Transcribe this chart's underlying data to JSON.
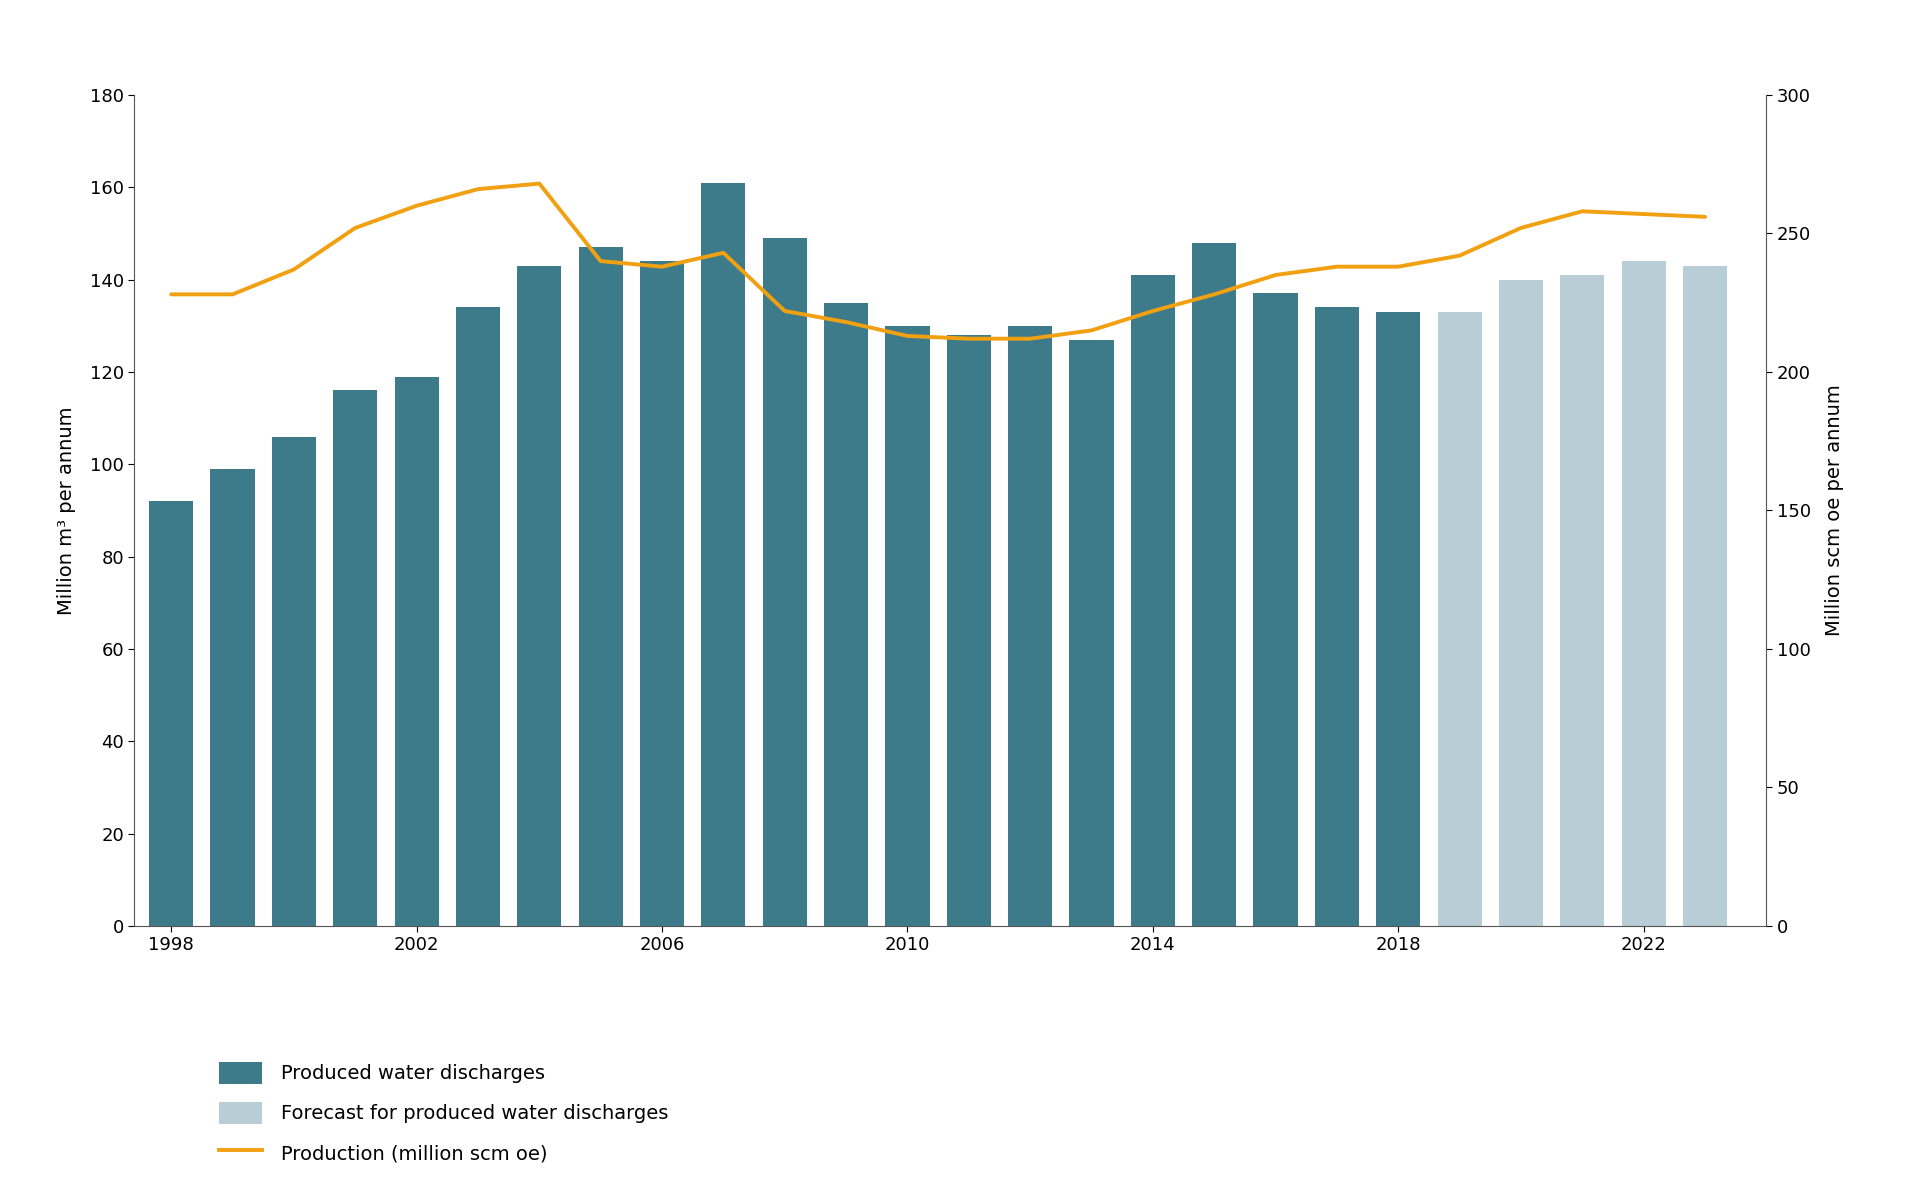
{
  "years_historical": [
    1998,
    1999,
    2000,
    2001,
    2002,
    2003,
    2004,
    2005,
    2006,
    2007,
    2008,
    2009,
    2010,
    2011,
    2012,
    2013,
    2014,
    2015,
    2016,
    2017,
    2018
  ],
  "water_historical": [
    92,
    99,
    106,
    116,
    119,
    134,
    143,
    147,
    144,
    161,
    149,
    135,
    130,
    128,
    130,
    127,
    141,
    148,
    137,
    134,
    133
  ],
  "years_forecast": [
    2019,
    2020,
    2021,
    2022,
    2023
  ],
  "water_forecast": [
    133,
    140,
    141,
    144,
    143
  ],
  "production_years": [
    1998,
    1999,
    2000,
    2001,
    2002,
    2003,
    2004,
    2005,
    2006,
    2007,
    2008,
    2009,
    2010,
    2011,
    2012,
    2013,
    2014,
    2015,
    2016,
    2017,
    2018,
    2019,
    2020,
    2021,
    2022,
    2023
  ],
  "production_values": [
    228,
    228,
    237,
    252,
    260,
    266,
    268,
    240,
    238,
    243,
    222,
    218,
    213,
    212,
    212,
    215,
    222,
    228,
    235,
    238,
    238,
    242,
    252,
    258,
    257,
    256
  ],
  "bar_color_historical": "#3d7a8a",
  "bar_color_forecast": "#b8cdd6",
  "line_color": "#f0a010",
  "background_color": "#ffffff",
  "ylabel_left": "Million m³ per annum",
  "ylabel_right": "Million scm oe per annum",
  "ylim_left": [
    0,
    180
  ],
  "ylim_right": [
    0,
    300
  ],
  "yticks_left": [
    0,
    20,
    40,
    60,
    80,
    100,
    120,
    140,
    160,
    180
  ],
  "yticks_right": [
    0,
    50,
    100,
    150,
    200,
    250,
    300
  ],
  "legend_labels": [
    "Produced water discharges",
    "Forecast for produced water discharges",
    "Production (million scm oe)"
  ],
  "axis_fontsize": 14,
  "legend_fontsize": 14,
  "tick_fontsize": 13,
  "line_width": 2.8,
  "bar_width": 0.72
}
